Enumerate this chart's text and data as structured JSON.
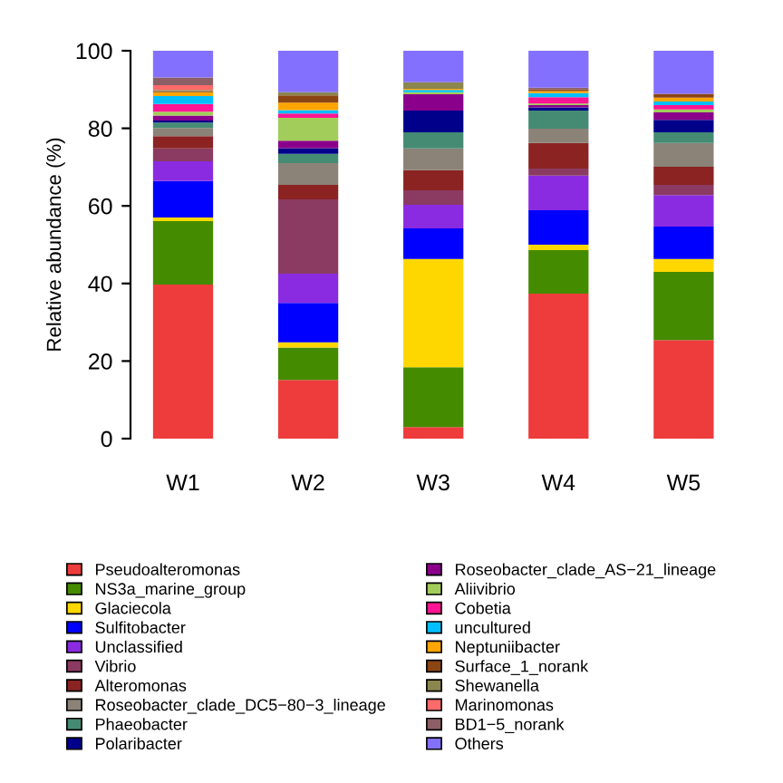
{
  "chart_data": {
    "type": "bar",
    "stacked": true,
    "ylabel": "Relative abundance (%)",
    "categories": [
      "W1",
      "W2",
      "W3",
      "W4",
      "W5"
    ],
    "ylim": [
      0,
      100
    ],
    "yticks": [
      0,
      20,
      40,
      60,
      80,
      100
    ],
    "grid": false,
    "legend": "bottom",
    "series": [
      {
        "name": "Pseudoalteromonas",
        "color": "#ee3b3b",
        "values": [
          39.7,
          15.1,
          3.0,
          37.4,
          25.4
        ]
      },
      {
        "name": "NS3a_marine_group",
        "color": "#458b00",
        "values": [
          16.4,
          8.4,
          15.4,
          11.2,
          17.6
        ]
      },
      {
        "name": "Glaciecola",
        "color": "#ffd700",
        "values": [
          0.9,
          1.3,
          27.9,
          1.4,
          3.3
        ]
      },
      {
        "name": "Sulfitobacter",
        "color": "#0000ff",
        "values": [
          9.4,
          10.2,
          7.9,
          8.9,
          8.4
        ]
      },
      {
        "name": "Unclassified",
        "color": "#8a2be2",
        "values": [
          5.1,
          7.5,
          6.1,
          8.9,
          8.1
        ]
      },
      {
        "name": "Vibrio",
        "color": "#8b3a62",
        "values": [
          3.3,
          19.2,
          3.7,
          1.8,
          2.6
        ]
      },
      {
        "name": "Alteromonas",
        "color": "#8b2323",
        "values": [
          3.2,
          3.7,
          5.2,
          6.6,
          4.7
        ]
      },
      {
        "name": "Roseobacter_clade_DC5−80−3_lineage",
        "color": "#8b8378",
        "values": [
          2.1,
          5.6,
          5.6,
          3.7,
          6.1
        ]
      },
      {
        "name": "Phaeobacter",
        "color": "#458b74",
        "values": [
          1.4,
          2.4,
          4.2,
          4.7,
          2.8
        ]
      },
      {
        "name": "Polaribacter",
        "color": "#00008b",
        "values": [
          0.5,
          1.5,
          5.6,
          0.8,
          3.2
        ]
      },
      {
        "name": "Roseobacter_clade_AS−21_lineage",
        "color": "#8b008b",
        "values": [
          1.3,
          1.9,
          4.2,
          0.6,
          1.9
        ]
      },
      {
        "name": "Aliivibrio",
        "color": "#a2cd5a",
        "values": [
          1.0,
          5.9,
          0.5,
          0.4,
          0.8
        ]
      },
      {
        "name": "Cobetia",
        "color": "#ff1493",
        "values": [
          2.0,
          1.1,
          0,
          1.6,
          1.1
        ]
      },
      {
        "name": "uncultured",
        "color": "#00bfff",
        "values": [
          2.0,
          0.9,
          0.6,
          1.1,
          0.9
        ]
      },
      {
        "name": "Neptuniibacter",
        "color": "#ffa500",
        "values": [
          1.0,
          1.9,
          0.3,
          0.5,
          1.0
        ]
      },
      {
        "name": "Surface_1_norank",
        "color": "#8b4513",
        "values": [
          0.3,
          1.9,
          0,
          0.4,
          1.0
        ]
      },
      {
        "name": "Shewanella",
        "color": "#8b864e",
        "values": [
          0.3,
          0.8,
          1.7,
          0,
          0
        ]
      },
      {
        "name": "Marinomonas",
        "color": "#ff6a6a",
        "values": [
          1.2,
          0,
          0,
          0,
          0
        ]
      },
      {
        "name": "BD1−5_norank",
        "color": "#8b5f65",
        "values": [
          2.0,
          0,
          0,
          0.5,
          0
        ]
      },
      {
        "name": "Others",
        "color": "#8470ff",
        "values": [
          6.9,
          10.7,
          8.1,
          9.5,
          11.1
        ]
      }
    ]
  }
}
